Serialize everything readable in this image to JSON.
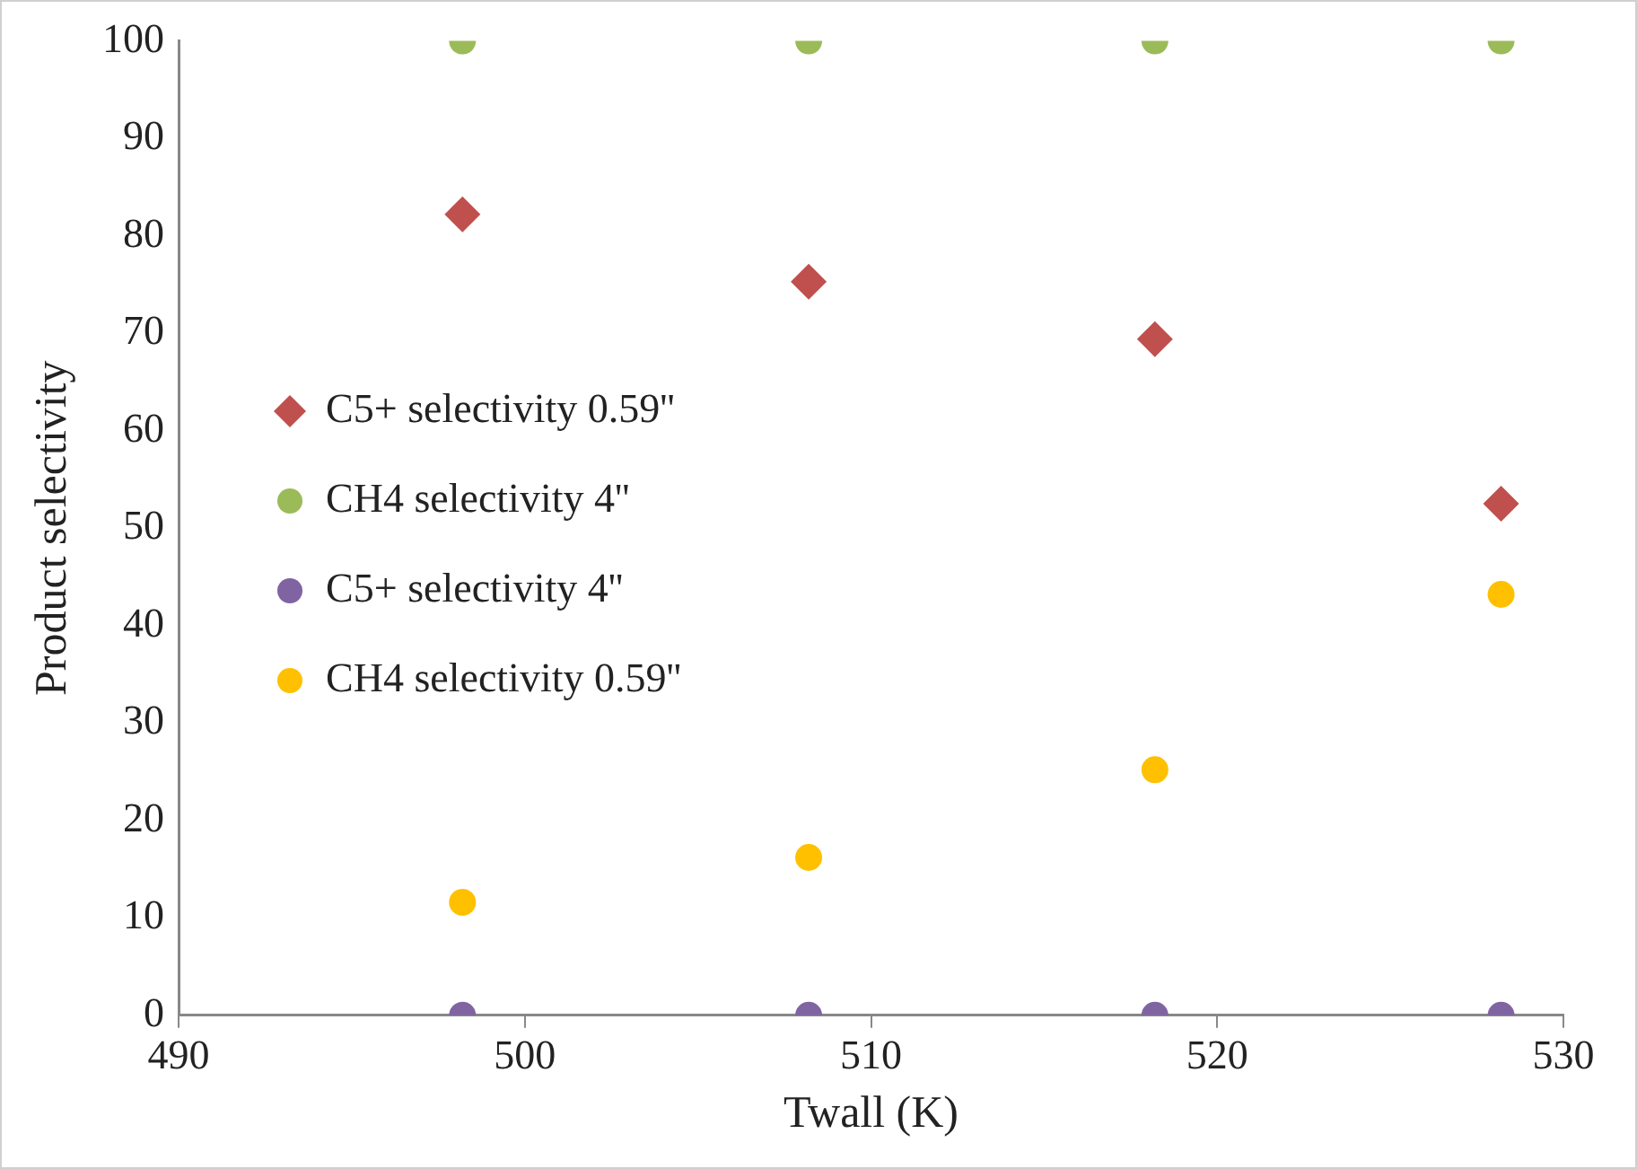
{
  "chart_data": {
    "type": "scatter",
    "xlabel": "Twall (K)",
    "ylabel": "Product selectivity",
    "x": [
      498.2,
      508.2,
      518.2,
      528.2
    ],
    "series": [
      {
        "name": "C5+ selectivity 0.59''",
        "color": "#c0504d",
        "marker": "diamond",
        "values": [
          82.2,
          75.3,
          69.4,
          52.5
        ]
      },
      {
        "name": "CH4 selectivity 4''",
        "color": "#9bbb59",
        "marker": "circle",
        "values": [
          100,
          100,
          100,
          100
        ]
      },
      {
        "name": "C5+ selectivity 4''",
        "color": "#8064a2",
        "marker": "circle",
        "values": [
          0,
          0,
          0,
          0
        ]
      },
      {
        "name": "CH4 selectivity 0.59''",
        "color": "#ffc000",
        "marker": "circle",
        "values": [
          11.6,
          16.2,
          25.2,
          43.2
        ]
      }
    ],
    "xlim": [
      490,
      530
    ],
    "xticks": [
      490,
      500,
      510,
      520,
      530
    ],
    "ylim": [
      0,
      100
    ],
    "yticks": [
      0,
      10,
      20,
      30,
      40,
      50,
      60,
      70,
      80,
      90,
      100
    ],
    "grid": false,
    "legend": "left"
  }
}
